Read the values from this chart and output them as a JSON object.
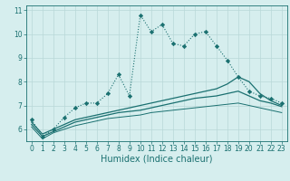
{
  "title": "",
  "xlabel": "Humidex (Indice chaleur)",
  "ylabel": "",
  "bg_color": "#d6eeee",
  "grid_color": "#b8d8d8",
  "line_color": "#1a7070",
  "xlim": [
    -0.5,
    23.5
  ],
  "ylim": [
    5.5,
    11.2
  ],
  "yticks": [
    6,
    7,
    8,
    9,
    10,
    11
  ],
  "xticks": [
    0,
    1,
    2,
    3,
    4,
    5,
    6,
    7,
    8,
    9,
    10,
    11,
    12,
    13,
    14,
    15,
    16,
    17,
    18,
    19,
    20,
    21,
    22,
    23
  ],
  "series": [
    {
      "x": [
        0,
        1,
        2,
        3,
        4,
        5,
        6,
        7,
        8,
        9,
        10,
        11,
        12,
        13,
        14,
        15,
        16,
        17,
        18,
        19,
        20,
        21,
        22,
        23
      ],
      "y": [
        6.4,
        5.7,
        6.0,
        6.5,
        6.9,
        7.1,
        7.1,
        7.5,
        8.3,
        7.4,
        10.8,
        10.1,
        10.4,
        9.6,
        9.5,
        10.0,
        10.1,
        9.5,
        8.9,
        8.2,
        7.6,
        7.4,
        7.3,
        7.1
      ],
      "style": "dotted",
      "marker": "D",
      "markersize": 2.2,
      "linewidth": 0.8
    },
    {
      "x": [
        0,
        1,
        2,
        3,
        4,
        5,
        6,
        7,
        8,
        9,
        10,
        11,
        12,
        13,
        14,
        15,
        16,
        17,
        18,
        19,
        20,
        21,
        22,
        23
      ],
      "y": [
        6.3,
        5.8,
        6.0,
        6.2,
        6.4,
        6.5,
        6.6,
        6.7,
        6.8,
        6.9,
        7.0,
        7.1,
        7.2,
        7.3,
        7.4,
        7.5,
        7.6,
        7.7,
        7.9,
        8.2,
        8.0,
        7.5,
        7.2,
        7.0
      ],
      "style": "solid",
      "marker": null,
      "markersize": 0,
      "linewidth": 0.9
    },
    {
      "x": [
        0,
        1,
        2,
        3,
        4,
        5,
        6,
        7,
        8,
        9,
        10,
        11,
        12,
        13,
        14,
        15,
        16,
        17,
        18,
        19,
        20,
        21,
        22,
        23
      ],
      "y": [
        6.2,
        5.7,
        5.9,
        6.1,
        6.3,
        6.4,
        6.5,
        6.6,
        6.7,
        6.75,
        6.8,
        6.9,
        7.0,
        7.1,
        7.2,
        7.3,
        7.35,
        7.4,
        7.5,
        7.6,
        7.4,
        7.2,
        7.1,
        6.95
      ],
      "style": "solid",
      "marker": null,
      "markersize": 0,
      "linewidth": 0.9
    },
    {
      "x": [
        0,
        1,
        2,
        3,
        4,
        5,
        6,
        7,
        8,
        9,
        10,
        11,
        12,
        13,
        14,
        15,
        16,
        17,
        18,
        19,
        20,
        21,
        22,
        23
      ],
      "y": [
        6.1,
        5.6,
        5.85,
        6.0,
        6.15,
        6.25,
        6.35,
        6.45,
        6.5,
        6.55,
        6.6,
        6.7,
        6.75,
        6.8,
        6.85,
        6.9,
        6.95,
        7.0,
        7.05,
        7.1,
        7.0,
        6.9,
        6.8,
        6.7
      ],
      "style": "solid",
      "marker": null,
      "markersize": 0,
      "linewidth": 0.7
    }
  ],
  "tick_fontsize": 5.5,
  "xlabel_fontsize": 7.0
}
